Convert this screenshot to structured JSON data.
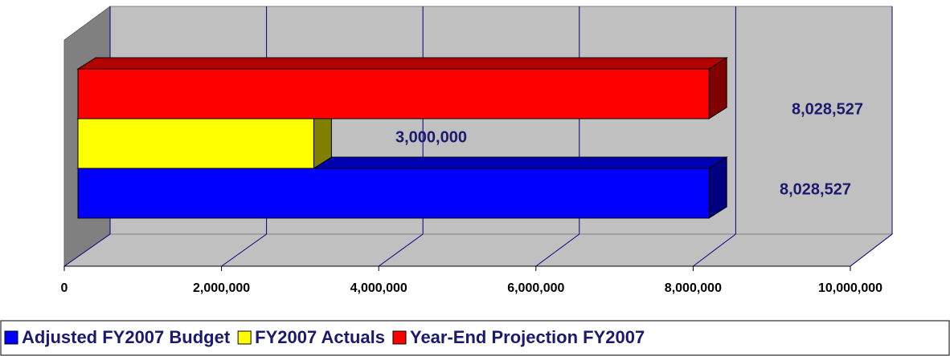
{
  "chart_data": {
    "type": "bar",
    "orientation": "horizontal",
    "categories": [
      null
    ],
    "series": [
      {
        "name": "Adjusted FY2007 Budget",
        "color": "#0000ff",
        "values": [
          8028527
        ],
        "value_labels": [
          "8,028,527"
        ]
      },
      {
        "name": "FY2007 Actuals",
        "color": "#ffff00",
        "values": [
          3000000
        ],
        "value_labels": [
          "3,000,000"
        ]
      },
      {
        "name": "Year-End Projection FY2007",
        "color": "#ff0000",
        "values": [
          8028527
        ],
        "value_labels": [
          "8,028,527"
        ]
      }
    ],
    "xlim": [
      0,
      10000000
    ],
    "xticks": [
      0,
      {
        "value": 2000000,
        "label": "2,000,000"
      },
      {
        "value": 4000000,
        "label": "4,000,000"
      },
      {
        "value": 6000000,
        "label": "6,000,000"
      },
      {
        "value": 8000000,
        "label": "8,000,000"
      },
      {
        "value": 10000000,
        "label": "10,000,000"
      }
    ],
    "grid": true,
    "legend": "bottom"
  }
}
